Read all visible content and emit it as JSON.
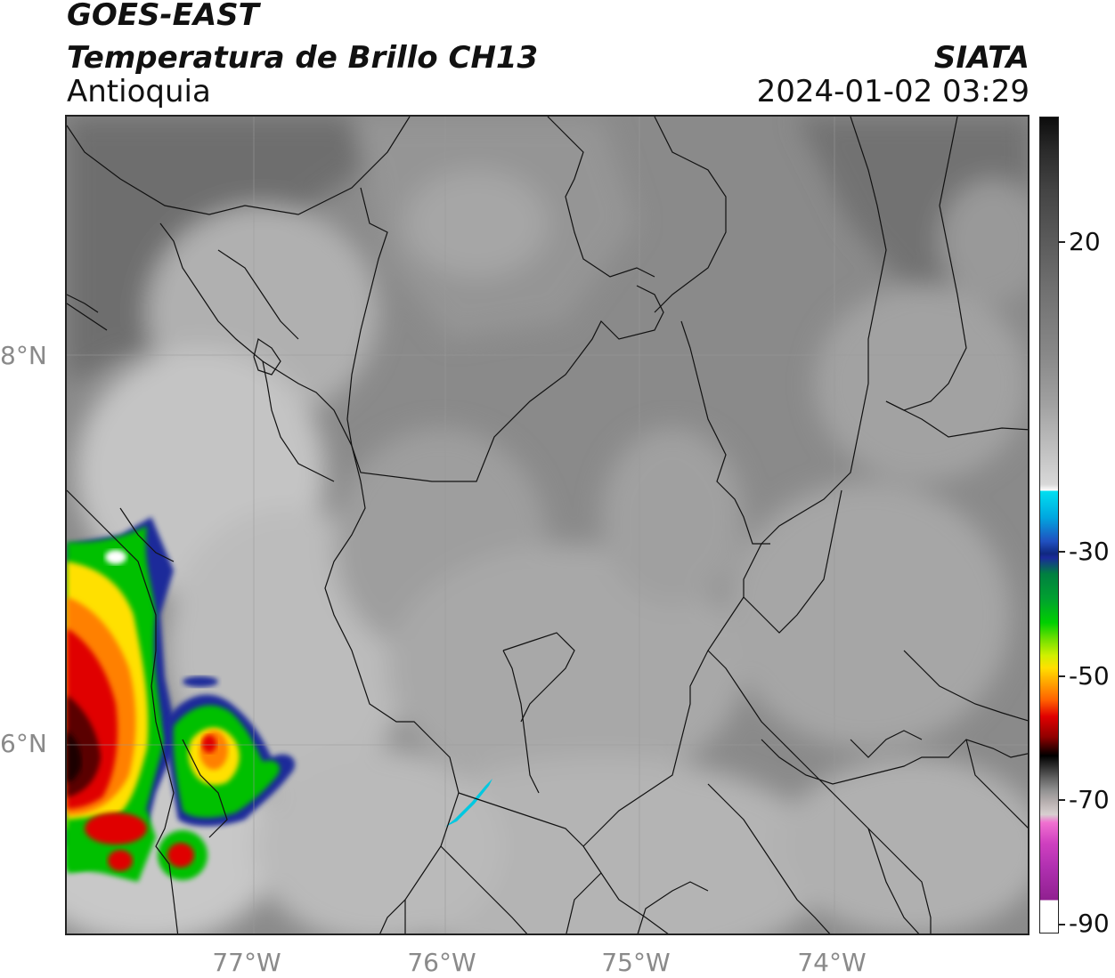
{
  "header": {
    "satellite": "GOES-EAST",
    "product": "Temperatura de Brillo CH13",
    "brand": "SIATA",
    "region": "Antioquia",
    "datetime": "2024-01-02 03:29"
  },
  "map": {
    "lat_labels": [
      {
        "text": "8°N",
        "lat": 8
      },
      {
        "text": "6°N",
        "lat": 6
      }
    ],
    "lon_labels": [
      {
        "text": "77°W",
        "lon": -77
      },
      {
        "text": "76°W",
        "lon": -76
      },
      {
        "text": "75°W",
        "lon": -75
      },
      {
        "text": "74°W",
        "lon": -74
      }
    ],
    "extent": {
      "lon_min": -77.95,
      "lon_max": -73.0,
      "lat_min": 5.0,
      "lat_max": 9.2
    },
    "cold_cloud_color": "#c80000",
    "background_color": "#8c8c8c"
  },
  "colorbar": {
    "ticks": [
      {
        "label": "20",
        "value": 20
      },
      {
        "label": "-30",
        "value": -30
      },
      {
        "label": "-50",
        "value": -50
      },
      {
        "label": "-70",
        "value": -70
      },
      {
        "label": "-90",
        "value": -90
      }
    ],
    "colors": {
      "warm_dark": "#111111",
      "warm_mid": "#888888",
      "white": "#ffffff",
      "cyan": "#00e0f0",
      "blue": "#1a2a9a",
      "green": "#00c000",
      "yellow": "#ffe000",
      "orange": "#ff8000",
      "red": "#e00000",
      "dark_red": "#300000",
      "gray_light": "#d8d0d0",
      "magenta": "#d040c0",
      "purple": "#902090"
    }
  }
}
